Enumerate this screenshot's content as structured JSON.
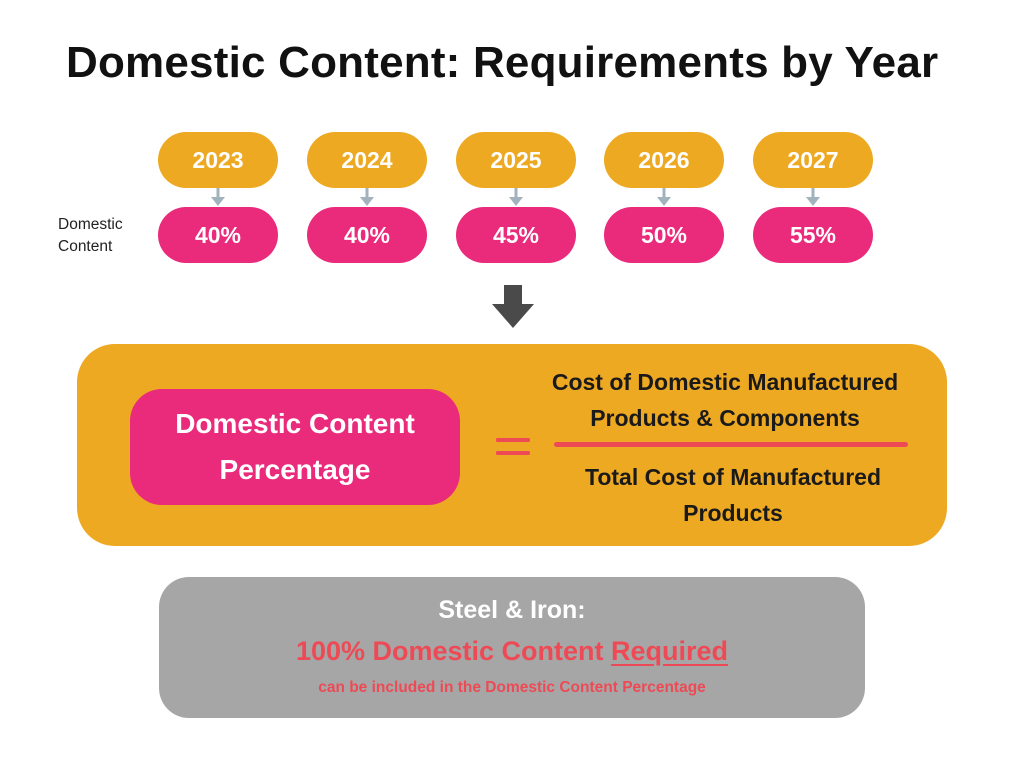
{
  "title": "Domestic Content: Requirements by Year",
  "row_label": "Domestic Content",
  "schedule": [
    {
      "year": "2023",
      "percent": "40%"
    },
    {
      "year": "2024",
      "percent": "40%"
    },
    {
      "year": "2025",
      "percent": "45%"
    },
    {
      "year": "2026",
      "percent": "50%"
    },
    {
      "year": "2027",
      "percent": "55%"
    }
  ],
  "formula": {
    "left_label": "Domestic Content Percentage",
    "numerator": "Cost of Domestic Manufactured Products & Components",
    "denominator": "Total Cost of Manufactured Products"
  },
  "steel": {
    "heading": "Steel & Iron:",
    "main_prefix": "100% Domestic Content",
    "main_emphasis": "Required",
    "note": "can be included in the Domestic Content Percentage"
  },
  "icons": {
    "small_arrow": "arrow-down-icon",
    "big_arrow": "big-arrow-down-icon",
    "equals": "equals-icon"
  },
  "colors": {
    "year_pill": "#eea923",
    "percent_pill": "#ea2a7b",
    "formula_box": "#eea923",
    "fraction_bar": "#ee4a55",
    "steel_box": "#a6a6a6",
    "steel_text": "#ee4a55",
    "small_arrow": "#a3b3bd",
    "big_arrow": "#4a4a4a"
  }
}
